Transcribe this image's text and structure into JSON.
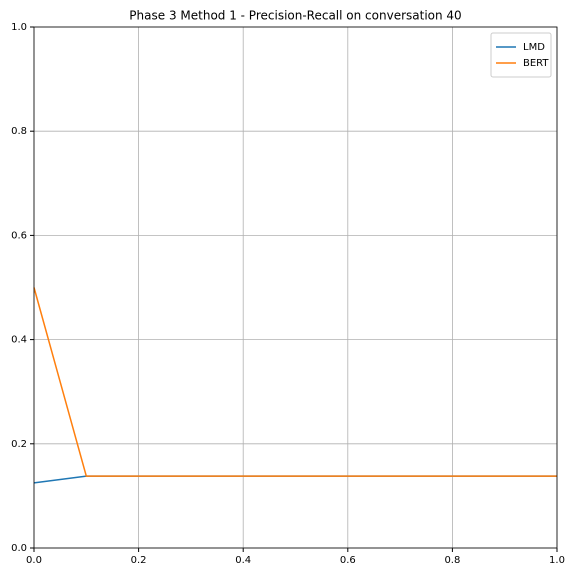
{
  "chart_data": {
    "type": "line",
    "title": "Phase 3 Method 1 - Precision-Recall on conversation 40",
    "x": [
      0,
      0.1,
      1
    ],
    "series": [
      {
        "name": "LMD",
        "color": "#1f77b4",
        "values": [
          0.125,
          0.138,
          0.138
        ]
      },
      {
        "name": "BERT",
        "color": "#ff7f0e",
        "values": [
          0.5,
          0.138,
          0.138
        ]
      }
    ],
    "xlim": [
      0,
      1
    ],
    "ylim": [
      0,
      1
    ],
    "xticks": [
      {
        "value": 0,
        "label": "0.0"
      },
      0.2,
      0.4,
      0.6,
      0.8,
      {
        "value": 1,
        "label": "1.0"
      }
    ],
    "yticks": [
      {
        "value": 0,
        "label": "0.0"
      },
      0.2,
      0.4,
      0.6,
      0.8,
      {
        "value": 1,
        "label": "1.0"
      }
    ],
    "grid": true,
    "legend": "upper right"
  }
}
